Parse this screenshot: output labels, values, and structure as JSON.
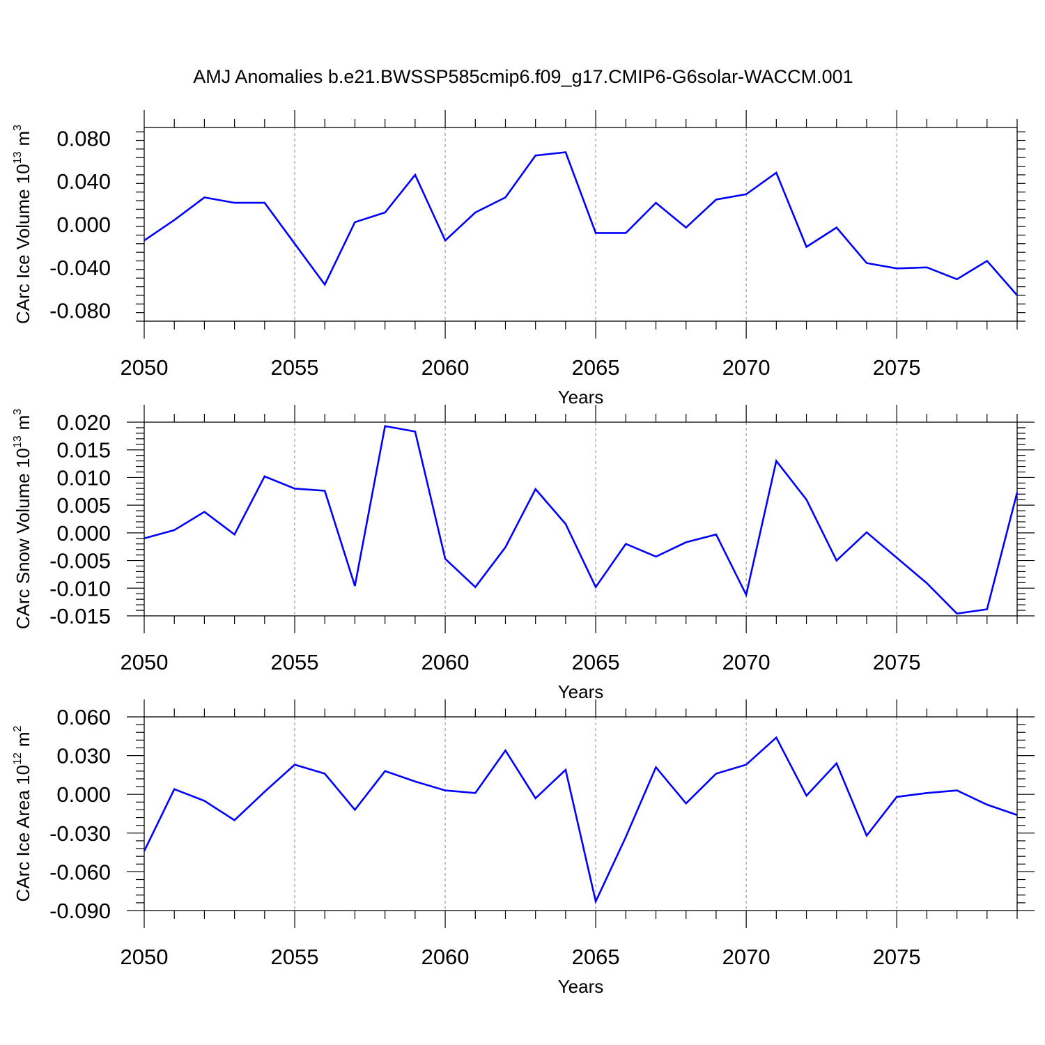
{
  "title": "AMJ Anomalies b.e21.BWSSP585cmip6.f09_g17.CMIP6-G6solar-WACCM.001",
  "colors": {
    "line": "#0000ff",
    "axis": "#000000",
    "grid": "#999999"
  },
  "chart_data": [
    {
      "type": "line",
      "xlabel": "Years",
      "ylabel": "CArc Ice Volume 10",
      "ylabel_sup": "13",
      "ylabel_unit": "m",
      "ylabel_unit_sup": "3",
      "xlim": [
        2050,
        2079
      ],
      "ylim": [
        -0.09,
        0.09
      ],
      "xticks": [
        "2050",
        "2055",
        "2060",
        "2065",
        "2070",
        "2075"
      ],
      "xtick_values": [
        2050,
        2055,
        2060,
        2065,
        2070,
        2075
      ],
      "yticks": [
        "0.080",
        "0.040",
        "0.000",
        "-0.040",
        "-0.080"
      ],
      "ytick_values": [
        0.08,
        0.04,
        0.0,
        -0.04,
        -0.08
      ],
      "grid": "vertical dashed at major x ticks",
      "x": [
        2050,
        2051,
        2052,
        2053,
        2054,
        2055,
        2056,
        2057,
        2058,
        2059,
        2060,
        2061,
        2062,
        2063,
        2064,
        2065,
        2066,
        2067,
        2068,
        2069,
        2070,
        2071,
        2072,
        2073,
        2074,
        2075,
        2076,
        2077,
        2078,
        2079
      ],
      "series": [
        {
          "values": [
            -0.015,
            0.004,
            0.025,
            0.02,
            0.02,
            -0.018,
            -0.056,
            0.002,
            0.011,
            0.046,
            -0.015,
            0.011,
            0.025,
            0.064,
            0.067,
            -0.008,
            -0.008,
            0.02,
            -0.003,
            0.023,
            0.028,
            0.048,
            -0.021,
            -0.003,
            -0.036,
            -0.041,
            -0.04,
            -0.051,
            -0.034,
            -0.066
          ]
        }
      ]
    },
    {
      "type": "line",
      "xlabel": "Years",
      "ylabel": "CArc Snow Volume 10",
      "ylabel_sup": "13",
      "ylabel_unit": "m",
      "ylabel_unit_sup": "3",
      "xlim": [
        2050,
        2079
      ],
      "ylim": [
        -0.015,
        0.02
      ],
      "xticks": [
        "2050",
        "2055",
        "2060",
        "2065",
        "2070",
        "2075"
      ],
      "xtick_values": [
        2050,
        2055,
        2060,
        2065,
        2070,
        2075
      ],
      "yticks": [
        "0.020",
        "0.015",
        "0.010",
        "0.005",
        "0.000",
        "-0.005",
        "-0.010",
        "-0.015"
      ],
      "ytick_values": [
        0.02,
        0.015,
        0.01,
        0.005,
        0.0,
        -0.005,
        -0.01,
        -0.015
      ],
      "grid": "vertical dashed at major x ticks",
      "x": [
        2050,
        2051,
        2052,
        2053,
        2054,
        2055,
        2056,
        2057,
        2058,
        2059,
        2060,
        2061,
        2062,
        2063,
        2064,
        2065,
        2066,
        2067,
        2068,
        2069,
        2070,
        2071,
        2072,
        2073,
        2074,
        2075,
        2076,
        2077,
        2078,
        2079
      ],
      "series": [
        {
          "values": [
            -0.001,
            0.0005,
            0.0038,
            -0.0003,
            0.0102,
            0.008,
            0.0076,
            -0.0096,
            0.0193,
            0.0183,
            -0.0047,
            -0.0098,
            -0.0026,
            0.0079,
            0.0016,
            -0.0098,
            -0.002,
            -0.0043,
            -0.0017,
            -0.0003,
            -0.0112,
            0.013,
            0.006,
            -0.005,
            0.0001,
            -0.0045,
            -0.0091,
            -0.0146,
            -0.0138,
            0.0073
          ]
        }
      ]
    },
    {
      "type": "line",
      "xlabel": "Years",
      "ylabel": "CArc Ice Area 10",
      "ylabel_sup": "12",
      "ylabel_unit": "m",
      "ylabel_unit_sup": "2",
      "xlim": [
        2050,
        2079
      ],
      "ylim": [
        -0.09,
        0.06
      ],
      "xticks": [
        "2050",
        "2055",
        "2060",
        "2065",
        "2070",
        "2075"
      ],
      "xtick_values": [
        2050,
        2055,
        2060,
        2065,
        2070,
        2075
      ],
      "yticks": [
        "0.060",
        "0.030",
        "0.000",
        "-0.030",
        "-0.060",
        "-0.090"
      ],
      "ytick_values": [
        0.06,
        0.03,
        0.0,
        -0.03,
        -0.06,
        -0.09
      ],
      "grid": "vertical dashed at major x ticks",
      "x": [
        2050,
        2051,
        2052,
        2053,
        2054,
        2055,
        2056,
        2057,
        2058,
        2059,
        2060,
        2061,
        2062,
        2063,
        2064,
        2065,
        2066,
        2067,
        2068,
        2069,
        2070,
        2071,
        2072,
        2073,
        2074,
        2075,
        2076,
        2077,
        2078,
        2079
      ],
      "series": [
        {
          "values": [
            -0.044,
            0.004,
            -0.005,
            -0.02,
            0.002,
            0.023,
            0.016,
            -0.012,
            0.018,
            0.01,
            0.003,
            0.001,
            0.034,
            -0.003,
            0.019,
            -0.083,
            -0.033,
            0.021,
            -0.007,
            0.016,
            0.023,
            0.044,
            -0.001,
            0.024,
            -0.032,
            -0.002,
            0.001,
            0.003,
            -0.008,
            -0.016
          ]
        }
      ]
    }
  ]
}
